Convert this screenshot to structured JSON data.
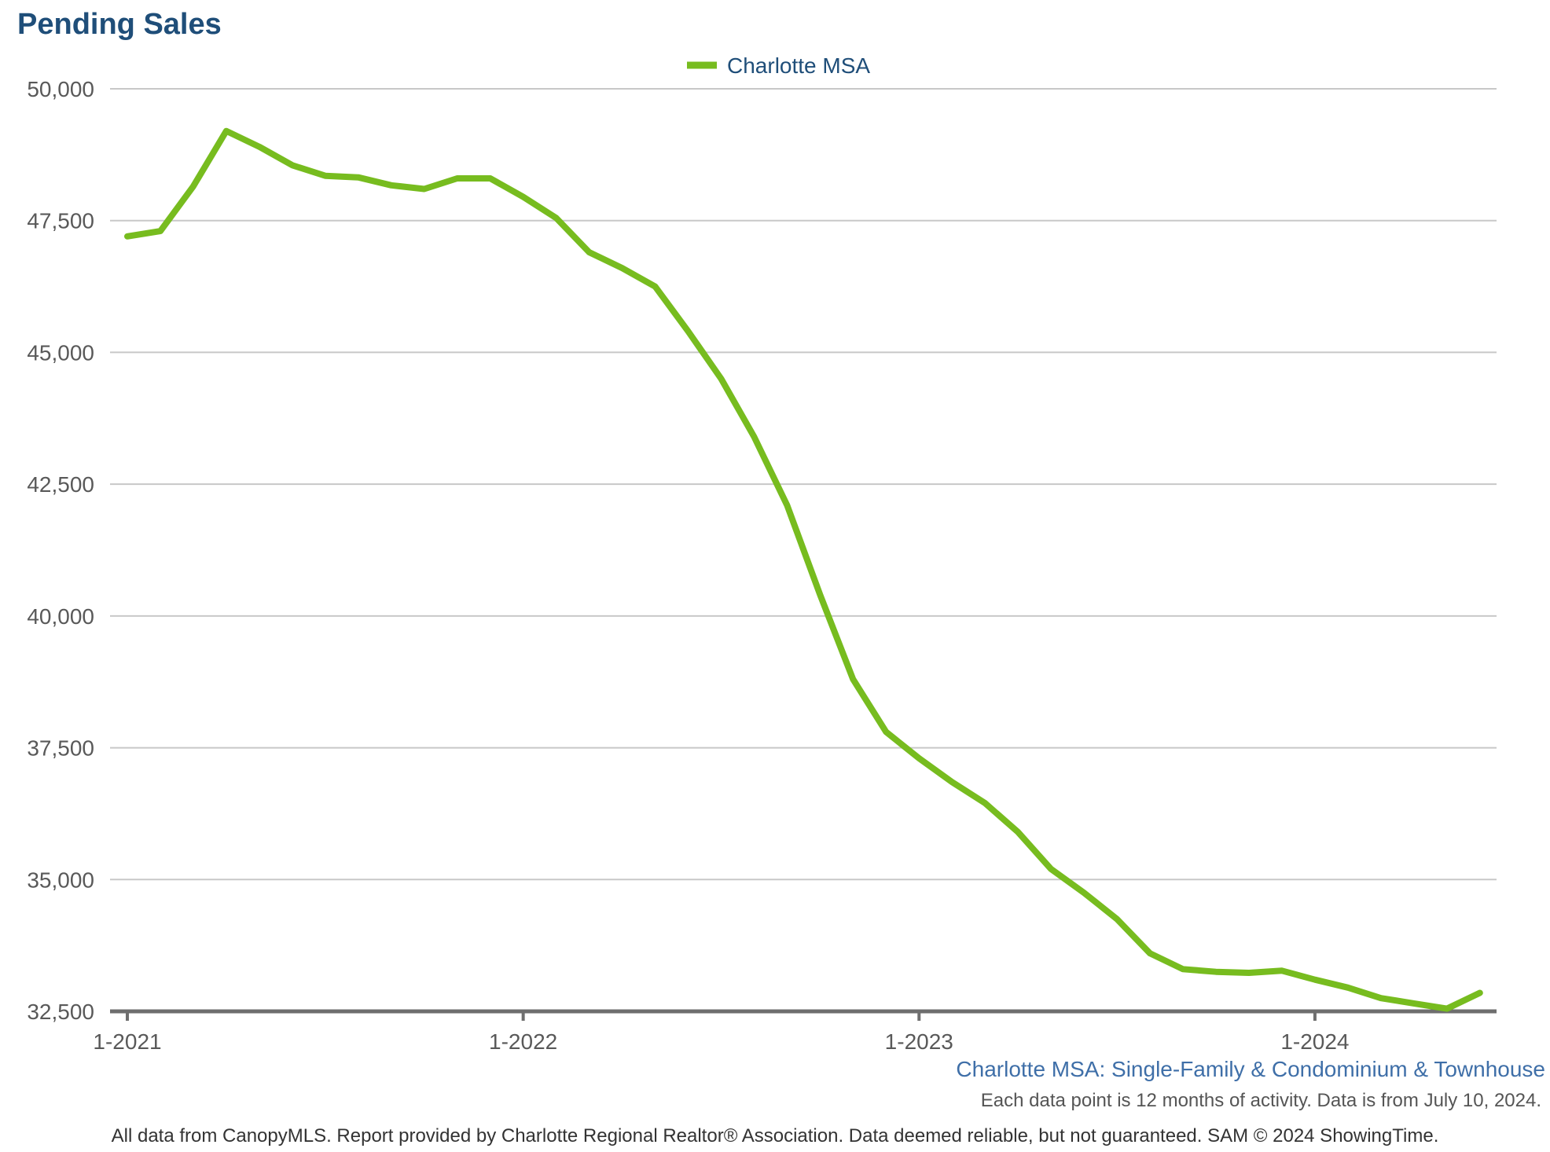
{
  "chart_data": {
    "type": "line",
    "title": "Pending Sales",
    "subtitle": "Charlotte MSA: Single-Family & Condominium & Townhouse",
    "note": "Each data point is 12 months of activity. Data is from July 10, 2024.",
    "footer": "All data from CanopyMLS. Report provided by Charlotte Regional Realtor® Association. Data deemed reliable, but not guaranteed. SAM © 2024 ShowingTime.",
    "xlabel": "",
    "ylabel": "",
    "ylim": [
      32500,
      50000
    ],
    "yticks": [
      50000,
      47500,
      45000,
      42500,
      40000,
      37500,
      35000,
      32500
    ],
    "ytick_labels": [
      "50,000",
      "47,500",
      "45,000",
      "42,500",
      "40,000",
      "37,500",
      "35,000",
      "32,500"
    ],
    "xticks": [
      "1-2021",
      "1-2022",
      "1-2023",
      "1-2024"
    ],
    "x": [
      "2021-01",
      "2021-02",
      "2021-03",
      "2021-04",
      "2021-05",
      "2021-06",
      "2021-07",
      "2021-08",
      "2021-09",
      "2021-10",
      "2021-11",
      "2021-12",
      "2022-01",
      "2022-02",
      "2022-03",
      "2022-04",
      "2022-05",
      "2022-06",
      "2022-07",
      "2022-08",
      "2022-09",
      "2022-10",
      "2022-11",
      "2022-12",
      "2023-01",
      "2023-02",
      "2023-03",
      "2023-04",
      "2023-05",
      "2023-06",
      "2023-07",
      "2023-08",
      "2023-09",
      "2023-10",
      "2023-11",
      "2023-12",
      "2024-01",
      "2024-02",
      "2024-03",
      "2024-04",
      "2024-05",
      "2024-06"
    ],
    "grid": true,
    "legend_position": "top-center",
    "series": [
      {
        "name": "Charlotte MSA",
        "color": "#77bc1f",
        "values": [
          47200,
          47300,
          48150,
          49200,
          48900,
          48550,
          48350,
          48320,
          48170,
          48100,
          48300,
          48300,
          47950,
          47550,
          46900,
          46600,
          46250,
          45400,
          44500,
          43400,
          42100,
          40400,
          38800,
          37800,
          37300,
          36850,
          36450,
          35900,
          35200,
          34750,
          34250,
          33600,
          33300,
          33250,
          33230,
          33270,
          33100,
          32950,
          32750,
          32650,
          32550,
          32850
        ]
      }
    ]
  }
}
